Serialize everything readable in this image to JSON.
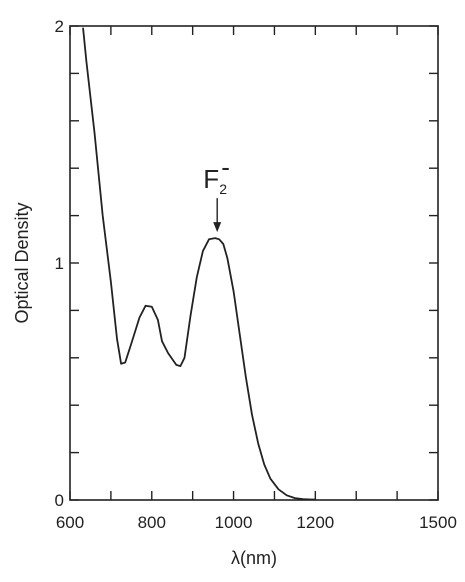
{
  "chart_data": {
    "type": "line",
    "xlabel": "λ(nm)",
    "ylabel": "Optical Density",
    "xlim": [
      600,
      1500
    ],
    "ylim": [
      0,
      2
    ],
    "x_ticks": [
      600,
      800,
      1000,
      1200,
      1500
    ],
    "x_minor_ticks": [
      700,
      900,
      1100,
      1300,
      1400
    ],
    "y_ticks": [
      0,
      1,
      2
    ],
    "y_minor_ticks": [
      0.2,
      0.4,
      0.6,
      0.8,
      1.2,
      1.4,
      1.6,
      1.8
    ],
    "grid": false,
    "series": [
      {
        "x": [
          632,
          640,
          660,
          680,
          700,
          715,
          725,
          735,
          750,
          770,
          785,
          800,
          815,
          825,
          840,
          860,
          870,
          880,
          895,
          910,
          925,
          940,
          955,
          965,
          975,
          985,
          1000,
          1015,
          1030,
          1045,
          1060,
          1075,
          1090,
          1110,
          1130,
          1150,
          1170,
          1190,
          1200
        ],
        "y": [
          1.99,
          1.85,
          1.55,
          1.2,
          0.92,
          0.68,
          0.575,
          0.58,
          0.66,
          0.77,
          0.82,
          0.815,
          0.76,
          0.67,
          0.62,
          0.57,
          0.565,
          0.6,
          0.78,
          0.94,
          1.05,
          1.1,
          1.105,
          1.1,
          1.08,
          1.02,
          0.88,
          0.7,
          0.52,
          0.36,
          0.24,
          0.15,
          0.09,
          0.045,
          0.02,
          0.008,
          0.004,
          0.002,
          0.002
        ]
      }
    ],
    "annotations": [
      {
        "text": "F",
        "subscript": "2",
        "superscript": "-",
        "target_x": 960,
        "target_y": 1.105
      }
    ]
  }
}
